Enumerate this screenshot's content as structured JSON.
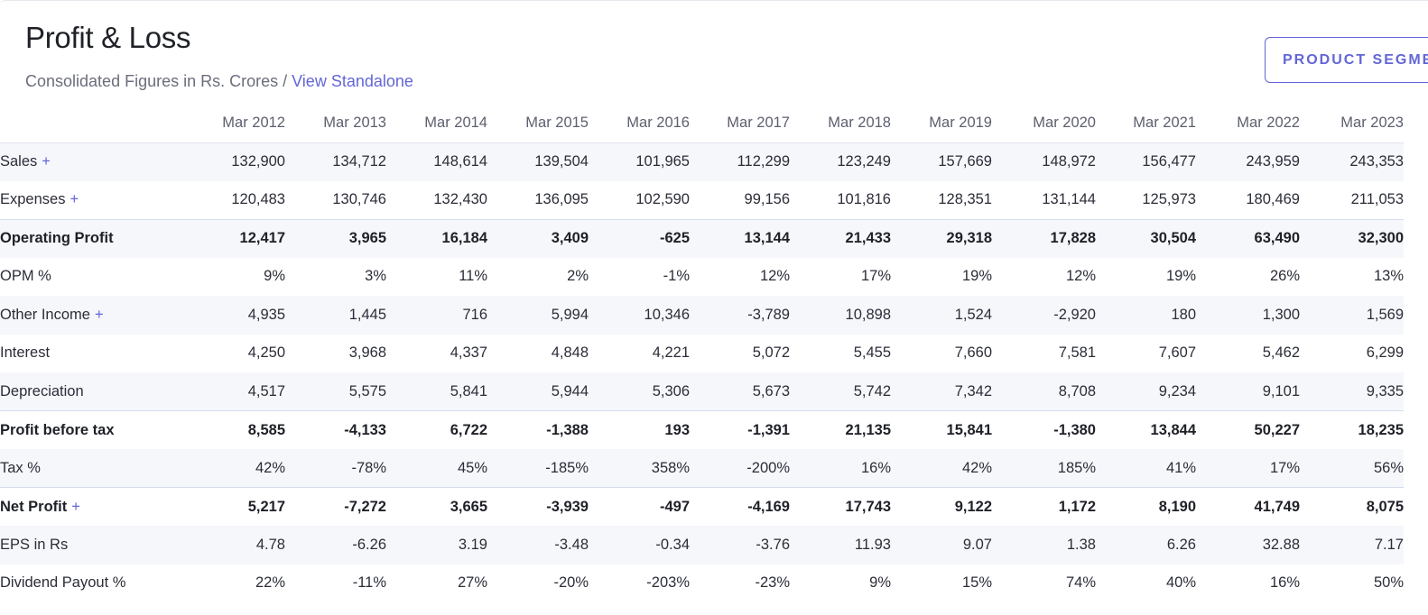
{
  "header": {
    "title": "Profit & Loss",
    "subtitle_prefix": "Consolidated Figures in Rs. Crores / ",
    "subtitle_link": "View Standalone",
    "segments_button": "PRODUCT SEGMENTS"
  },
  "table": {
    "columns": [
      "Mar 2012",
      "Mar 2013",
      "Mar 2014",
      "Mar 2015",
      "Mar 2016",
      "Mar 2017",
      "Mar 2018",
      "Mar 2019",
      "Mar 2020",
      "Mar 2021",
      "Mar 2022",
      "Mar 2023"
    ],
    "rows": [
      {
        "label": "Sales",
        "expandable": true,
        "bold": false,
        "separator": false,
        "values": [
          "132,900",
          "134,712",
          "148,614",
          "139,504",
          "101,965",
          "112,299",
          "123,249",
          "157,669",
          "148,972",
          "156,477",
          "243,959",
          "243,353"
        ]
      },
      {
        "label": "Expenses",
        "expandable": true,
        "bold": false,
        "separator": false,
        "values": [
          "120,483",
          "130,746",
          "132,430",
          "136,095",
          "102,590",
          "99,156",
          "101,816",
          "128,351",
          "131,144",
          "125,973",
          "180,469",
          "211,053"
        ]
      },
      {
        "label": "Operating Profit",
        "expandable": false,
        "bold": true,
        "separator": true,
        "values": [
          "12,417",
          "3,965",
          "16,184",
          "3,409",
          "-625",
          "13,144",
          "21,433",
          "29,318",
          "17,828",
          "30,504",
          "63,490",
          "32,300"
        ]
      },
      {
        "label": "OPM %",
        "expandable": false,
        "bold": false,
        "separator": false,
        "values": [
          "9%",
          "3%",
          "11%",
          "2%",
          "-1%",
          "12%",
          "17%",
          "19%",
          "12%",
          "19%",
          "26%",
          "13%"
        ]
      },
      {
        "label": "Other Income",
        "expandable": true,
        "bold": false,
        "separator": false,
        "values": [
          "4,935",
          "1,445",
          "716",
          "5,994",
          "10,346",
          "-3,789",
          "10,898",
          "1,524",
          "-2,920",
          "180",
          "1,300",
          "1,569"
        ]
      },
      {
        "label": "Interest",
        "expandable": false,
        "bold": false,
        "separator": false,
        "values": [
          "4,250",
          "3,968",
          "4,337",
          "4,848",
          "4,221",
          "5,072",
          "5,455",
          "7,660",
          "7,581",
          "7,607",
          "5,462",
          "6,299"
        ]
      },
      {
        "label": "Depreciation",
        "expandable": false,
        "bold": false,
        "separator": false,
        "values": [
          "4,517",
          "5,575",
          "5,841",
          "5,944",
          "5,306",
          "5,673",
          "5,742",
          "7,342",
          "8,708",
          "9,234",
          "9,101",
          "9,335"
        ]
      },
      {
        "label": "Profit before tax",
        "expandable": false,
        "bold": true,
        "separator": true,
        "values": [
          "8,585",
          "-4,133",
          "6,722",
          "-1,388",
          "193",
          "-1,391",
          "21,135",
          "15,841",
          "-1,380",
          "13,844",
          "50,227",
          "18,235"
        ]
      },
      {
        "label": "Tax %",
        "expandable": false,
        "bold": false,
        "separator": false,
        "values": [
          "42%",
          "-78%",
          "45%",
          "-185%",
          "358%",
          "-200%",
          "16%",
          "42%",
          "185%",
          "41%",
          "17%",
          "56%"
        ]
      },
      {
        "label": "Net Profit",
        "expandable": true,
        "bold": true,
        "separator": true,
        "values": [
          "5,217",
          "-7,272",
          "3,665",
          "-3,939",
          "-497",
          "-4,169",
          "17,743",
          "9,122",
          "1,172",
          "8,190",
          "41,749",
          "8,075"
        ]
      },
      {
        "label": "EPS in Rs",
        "expandable": false,
        "bold": false,
        "separator": false,
        "values": [
          "4.78",
          "-6.26",
          "3.19",
          "-3.48",
          "-0.34",
          "-3.76",
          "11.93",
          "9.07",
          "1.38",
          "6.26",
          "32.88",
          "7.17"
        ]
      },
      {
        "label": "Dividend Payout %",
        "expandable": false,
        "bold": false,
        "separator": false,
        "values": [
          "22%",
          "-11%",
          "27%",
          "-20%",
          "-203%",
          "-23%",
          "9%",
          "15%",
          "74%",
          "40%",
          "16%",
          "50%"
        ]
      }
    ],
    "expand_symbol": "+"
  },
  "colors": {
    "accent": "#6366d6",
    "zebra": "#f6f7fb",
    "text": "#2b2d38",
    "muted": "#6b6e7c"
  }
}
